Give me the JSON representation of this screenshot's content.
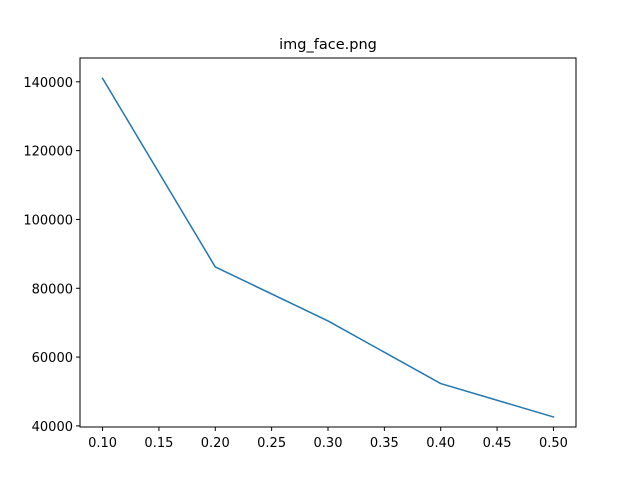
{
  "chart_data": {
    "type": "line",
    "title": "img_face.png",
    "xlabel": "",
    "ylabel": "",
    "x": [
      0.1,
      0.2,
      0.3,
      0.4,
      0.5
    ],
    "series": [
      {
        "values": [
          141000,
          86200,
          70500,
          52300,
          42600
        ],
        "color": "#1f77b4"
      }
    ],
    "xlim": [
      0.08,
      0.52
    ],
    "ylim": [
      39680,
      146920
    ],
    "xticks": [
      0.1,
      0.15,
      0.2,
      0.25,
      0.3,
      0.35,
      0.4,
      0.45,
      0.5
    ],
    "xtick_labels": [
      "0.10",
      "0.15",
      "0.20",
      "0.25",
      "0.30",
      "0.35",
      "0.40",
      "0.45",
      "0.50"
    ],
    "yticks": [
      40000,
      60000,
      80000,
      100000,
      120000,
      140000
    ],
    "ytick_labels": [
      "40000",
      "60000",
      "80000",
      "100000",
      "120000",
      "140000"
    ],
    "grid": false,
    "legend": "none"
  }
}
